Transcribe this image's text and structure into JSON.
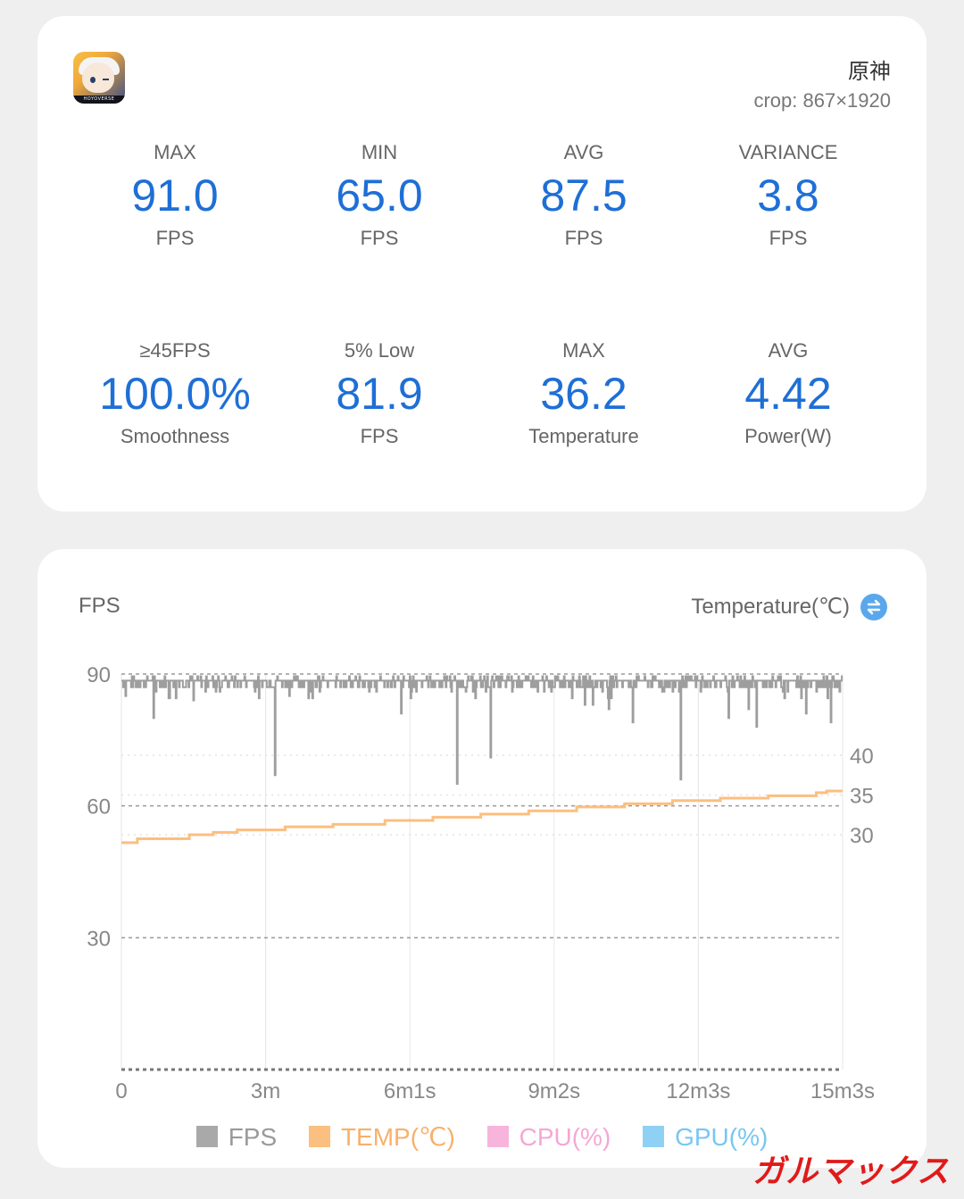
{
  "app": {
    "name": "原神",
    "crop": "crop: 867×1920",
    "icon": "genshin-app-icon",
    "icon_text": "HOYOVERSE"
  },
  "stats": [
    {
      "label": "MAX",
      "value": "91.0",
      "unit": "FPS"
    },
    {
      "label": "MIN",
      "value": "65.0",
      "unit": "FPS"
    },
    {
      "label": "AVG",
      "value": "87.5",
      "unit": "FPS"
    },
    {
      "label": "VARIANCE",
      "value": "3.8",
      "unit": "FPS"
    },
    {
      "label": "≥45FPS",
      "value": "100.0%",
      "unit": "Smoothness"
    },
    {
      "label": "5% Low",
      "value": "81.9",
      "unit": "FPS"
    },
    {
      "label": "MAX",
      "value": "36.2",
      "unit": "Temperature"
    },
    {
      "label": "AVG",
      "value": "4.42",
      "unit": "Power(W)"
    }
  ],
  "chart": {
    "left_title": "FPS",
    "right_title": "Temperature(℃)",
    "swap_icon": "swap-vertical-icon"
  },
  "legend": [
    {
      "label": "FPS",
      "color": "#a9a9a9",
      "text_color": "#9a9a9a"
    },
    {
      "label": "TEMP(℃)",
      "color": "#fbbf80",
      "text_color": "#f8b06a"
    },
    {
      "label": "CPU(%)",
      "color": "#f8b5dc",
      "text_color": "#f4a8d4"
    },
    {
      "label": "GPU(%)",
      "color": "#8fd0f5",
      "text_color": "#78c6f2"
    }
  ],
  "chart_data": {
    "type": "line",
    "x_ticks": [
      "0",
      "3m",
      "6m1s",
      "9m2s",
      "12m3s",
      "15m3s"
    ],
    "x_range_seconds": [
      0,
      903
    ],
    "y_left": {
      "label": "FPS",
      "ticks": [
        90,
        60,
        30
      ],
      "range": [
        0,
        90
      ]
    },
    "y_right": {
      "label": "Temperature(℃)",
      "ticks": [
        40,
        35,
        30
      ]
    },
    "series": [
      {
        "name": "FPS",
        "color": "#9e9e9e",
        "baseline": 88.5,
        "dips": [
          {
            "t": 5,
            "value": 85
          },
          {
            "t": 40,
            "value": 80
          },
          {
            "t": 90,
            "value": 84
          },
          {
            "t": 192,
            "value": 67
          },
          {
            "t": 210,
            "value": 85
          },
          {
            "t": 350,
            "value": 81
          },
          {
            "t": 420,
            "value": 65
          },
          {
            "t": 462,
            "value": 71
          },
          {
            "t": 580,
            "value": 83
          },
          {
            "t": 590,
            "value": 83
          },
          {
            "t": 610,
            "value": 82
          },
          {
            "t": 640,
            "value": 79
          },
          {
            "t": 700,
            "value": 66
          },
          {
            "t": 760,
            "value": 80
          },
          {
            "t": 785,
            "value": 82
          },
          {
            "t": 795,
            "value": 78
          },
          {
            "t": 857,
            "value": 81
          },
          {
            "t": 888,
            "value": 79
          }
        ]
      },
      {
        "name": "TEMP(℃)",
        "color": "#fbbf80",
        "steps": [
          {
            "t": 0,
            "value": 29.0
          },
          {
            "t": 20,
            "value": 29.5
          },
          {
            "t": 85,
            "value": 30.0
          },
          {
            "t": 115,
            "value": 30.3
          },
          {
            "t": 145,
            "value": 30.6
          },
          {
            "t": 205,
            "value": 31.0
          },
          {
            "t": 265,
            "value": 31.3
          },
          {
            "t": 330,
            "value": 31.8
          },
          {
            "t": 390,
            "value": 32.2
          },
          {
            "t": 450,
            "value": 32.6
          },
          {
            "t": 510,
            "value": 33.0
          },
          {
            "t": 570,
            "value": 33.5
          },
          {
            "t": 630,
            "value": 33.9
          },
          {
            "t": 690,
            "value": 34.3
          },
          {
            "t": 750,
            "value": 34.6
          },
          {
            "t": 810,
            "value": 34.9
          },
          {
            "t": 870,
            "value": 35.3
          },
          {
            "t": 883,
            "value": 35.5
          }
        ]
      }
    ]
  },
  "watermark": "ガルマックス"
}
